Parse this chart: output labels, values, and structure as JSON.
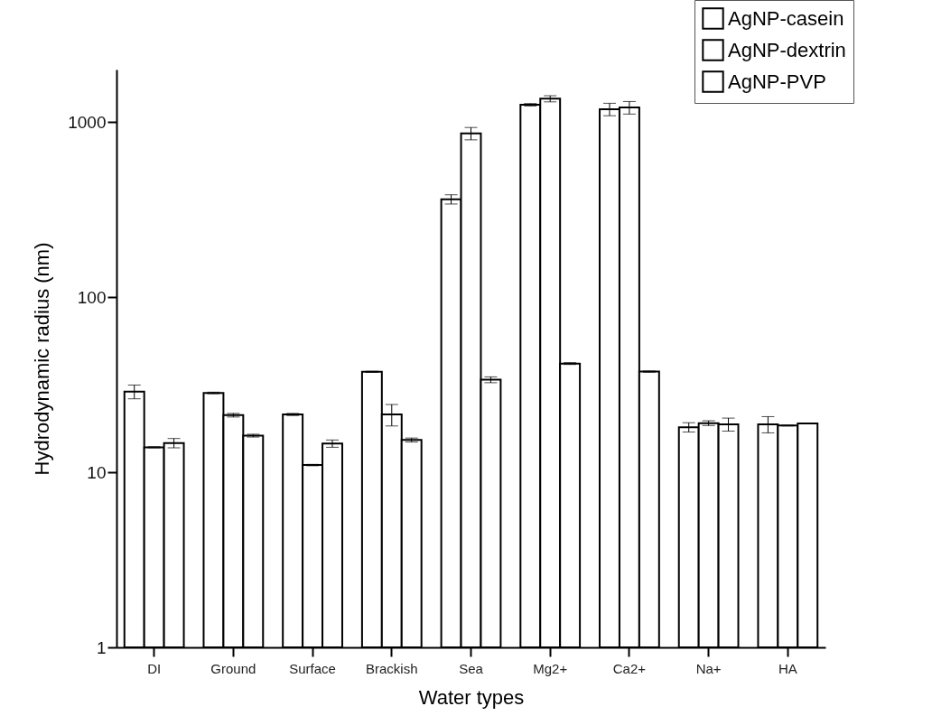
{
  "chart_data": {
    "type": "bar",
    "xlabel": "Water types",
    "ylabel": "Hydrodynamic radius (nm)",
    "categories": [
      "DI",
      "Ground",
      "Surface",
      "Brackish",
      "Sea",
      "Mg2+",
      "Ca2+",
      "Na+",
      "HA"
    ],
    "log": true,
    "ylim": [
      1,
      2000
    ],
    "yticks": [
      1,
      10,
      100,
      1000
    ],
    "grid": false,
    "legend": "top right",
    "series": [
      {
        "name": "AgNP-casein",
        "color": "#ffffff",
        "values": [
          28.9,
          28.4,
          21.4,
          37.5,
          363,
          1258,
          1186,
          18.1,
          18.8
        ],
        "errors": [
          2.6,
          0.3,
          0.3,
          0.3,
          22,
          20,
          97,
          1.1,
          2
        ]
      },
      {
        "name": "AgNP-dextrin",
        "color": "#ffffff",
        "values": [
          13.9,
          21.2,
          11.0,
          21.4,
          863,
          1362,
          1213,
          19.1,
          18.5
        ],
        "errors": [
          0.1,
          0.5,
          0.1,
          3,
          70,
          55,
          100,
          0.6,
          0.1
        ]
      },
      {
        "name": "AgNP-PVP",
        "color": "#ffffff",
        "values": [
          14.7,
          16.2,
          14.6,
          15.3,
          33.8,
          41.8,
          37.6,
          18.8,
          19.0
        ],
        "errors": [
          0.9,
          0.3,
          0.7,
          0.4,
          1.3,
          0.5,
          0.3,
          1.6,
          0.1
        ]
      }
    ]
  }
}
